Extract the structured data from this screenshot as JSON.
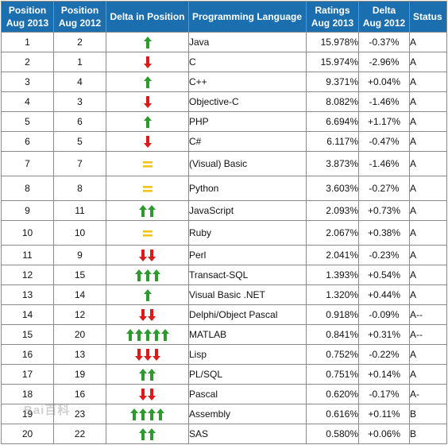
{
  "headers": {
    "pos2013": [
      "Position",
      "Aug 2013"
    ],
    "pos2012": [
      "Position",
      "Aug 2012"
    ],
    "delta_position": "Delta in Position",
    "language": "Programming Language",
    "ratings": [
      "Ratings",
      "Aug 2013"
    ],
    "delta": [
      "Delta",
      "Aug 2012"
    ],
    "status": "Status"
  },
  "colors": {
    "header_bg": "#1c6fae",
    "up": "#2e9a2e",
    "down": "#dd1a1a",
    "same": "#f0c419",
    "link": "#1f3f9a"
  },
  "rows": [
    {
      "pos2013": "1",
      "pos2012": "2",
      "change": {
        "dir": "up",
        "count": 1
      },
      "language": "Java",
      "rating": "15.978%",
      "delta": "-0.37%",
      "status": "A"
    },
    {
      "pos2013": "2",
      "pos2012": "1",
      "change": {
        "dir": "down",
        "count": 1
      },
      "language": "C",
      "rating": "15.974%",
      "delta": "-2.96%",
      "status": "A"
    },
    {
      "pos2013": "3",
      "pos2012": "4",
      "change": {
        "dir": "up",
        "count": 1
      },
      "language": "C++",
      "rating": "9.371%",
      "delta": "+0.04%",
      "status": "A"
    },
    {
      "pos2013": "4",
      "pos2012": "3",
      "change": {
        "dir": "down",
        "count": 1
      },
      "language": "Objective-C",
      "rating": "8.082%",
      "delta": "-1.46%",
      "status": "A"
    },
    {
      "pos2013": "5",
      "pos2012": "6",
      "change": {
        "dir": "up",
        "count": 1
      },
      "language": "PHP",
      "rating": "6.694%",
      "delta": "+1.17%",
      "status": "A"
    },
    {
      "pos2013": "6",
      "pos2012": "5",
      "change": {
        "dir": "down",
        "count": 1
      },
      "language": "C#",
      "rating": "6.117%",
      "delta": "-0.47%",
      "status": "A"
    },
    {
      "pos2013": "7",
      "pos2012": "7",
      "change": {
        "dir": "same",
        "count": 1
      },
      "language": "(Visual) Basic",
      "rating": "3.873%",
      "delta": "-1.46%",
      "status": "A"
    },
    {
      "pos2013": "8",
      "pos2012": "8",
      "change": {
        "dir": "same",
        "count": 1
      },
      "language": "Python",
      "rating": "3.603%",
      "delta": "-0.27%",
      "status": "A"
    },
    {
      "pos2013": "9",
      "pos2012": "11",
      "change": {
        "dir": "up",
        "count": 2
      },
      "language": "JavaScript",
      "rating": "2.093%",
      "delta": "+0.73%",
      "status": "A"
    },
    {
      "pos2013": "10",
      "pos2012": "10",
      "change": {
        "dir": "same",
        "count": 1
      },
      "language": "Ruby",
      "rating": "2.067%",
      "delta": "+0.38%",
      "status": "A"
    },
    {
      "pos2013": "11",
      "pos2012": "9",
      "change": {
        "dir": "down",
        "count": 2
      },
      "language": "Perl",
      "rating": "2.041%",
      "delta": "-0.23%",
      "status": "A"
    },
    {
      "pos2013": "12",
      "pos2012": "15",
      "change": {
        "dir": "up",
        "count": 3
      },
      "language": "Transact-SQL",
      "rating": "1.393%",
      "delta": "+0.54%",
      "status": "A"
    },
    {
      "pos2013": "13",
      "pos2012": "14",
      "change": {
        "dir": "up",
        "count": 1
      },
      "language": "Visual Basic .NET",
      "rating": "1.320%",
      "delta": "+0.44%",
      "status": "A"
    },
    {
      "pos2013": "14",
      "pos2012": "12",
      "change": {
        "dir": "down",
        "count": 2
      },
      "language": "Delphi/Object Pascal",
      "rating": "0.918%",
      "delta": "-0.09%",
      "status": "A--"
    },
    {
      "pos2013": "15",
      "pos2012": "20",
      "change": {
        "dir": "up",
        "count": 5
      },
      "language": "MATLAB",
      "rating": "0.841%",
      "delta": "+0.31%",
      "status": "A--"
    },
    {
      "pos2013": "16",
      "pos2012": "13",
      "change": {
        "dir": "down",
        "count": 3
      },
      "language": "Lisp",
      "rating": "0.752%",
      "delta": "-0.22%",
      "status": "A"
    },
    {
      "pos2013": "17",
      "pos2012": "19",
      "change": {
        "dir": "up",
        "count": 2
      },
      "language": "PL/SQL",
      "rating": "0.751%",
      "delta": "+0.14%",
      "status": "A"
    },
    {
      "pos2013": "18",
      "pos2012": "16",
      "change": {
        "dir": "down",
        "count": 2
      },
      "language": "Pascal",
      "rating": "0.620%",
      "delta": "-0.17%",
      "status": "A-"
    },
    {
      "pos2013": "19",
      "pos2012": "23",
      "change": {
        "dir": "up",
        "count": 4
      },
      "language": "Assembly",
      "rating": "0.616%",
      "delta": "+0.11%",
      "status": "B"
    },
    {
      "pos2013": "20",
      "pos2012": "22",
      "change": {
        "dir": "up",
        "count": 2
      },
      "language": "SAS",
      "rating": "0.580%",
      "delta": "+0.06%",
      "status": "B"
    }
  ]
}
